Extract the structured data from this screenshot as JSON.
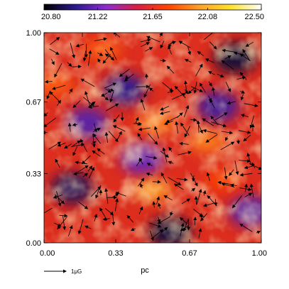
{
  "chart_data": {
    "type": "heatmap",
    "title": "",
    "xlabel": "pc",
    "ylabel": "",
    "xlim": [
      0.0,
      1.0
    ],
    "ylim": [
      0.0,
      1.0
    ],
    "x_ticks": [
      "0.00",
      "0.33",
      "0.67",
      "1.00"
    ],
    "y_ticks": [
      "0.00",
      "0.33",
      "0.67",
      "1.00"
    ],
    "x_tick_values": [
      0.0,
      0.33,
      0.67,
      1.0
    ],
    "y_tick_values": [
      0.0,
      0.33,
      0.67,
      1.0
    ],
    "colorbar": {
      "range": [
        20.8,
        22.5
      ],
      "ticks": [
        "20.80",
        "21.22",
        "21.65",
        "22.08",
        "22.50"
      ],
      "tick_values": [
        20.8,
        21.22,
        21.65,
        22.08,
        22.5
      ],
      "colors": [
        "#000000",
        "#2a1a8c",
        "#8c2ed0",
        "#d81f45",
        "#ff4500",
        "#ffa02a",
        "#ffe22a",
        "#ffffff"
      ]
    },
    "grid": false,
    "legend": "bottom-left",
    "vector_scale_label": "1μG",
    "low_regions": [
      {
        "x": 0.88,
        "y": 0.88,
        "level": 20.9
      },
      {
        "x": 0.13,
        "y": 0.26,
        "level": 20.95
      },
      {
        "x": 0.58,
        "y": 0.05,
        "level": 20.9
      },
      {
        "x": 0.37,
        "y": 0.73,
        "level": 21.05
      },
      {
        "x": 0.8,
        "y": 0.65,
        "level": 21.1
      },
      {
        "x": 0.95,
        "y": 0.15,
        "level": 21.15
      },
      {
        "x": 0.2,
        "y": 0.57,
        "level": 21.15
      },
      {
        "x": 0.45,
        "y": 0.4,
        "level": 21.2
      }
    ],
    "high_regions": [
      {
        "x": 0.5,
        "y": 0.25,
        "level": 22.05
      },
      {
        "x": 0.75,
        "y": 0.48,
        "level": 21.95
      },
      {
        "x": 0.52,
        "y": 0.57,
        "level": 21.95
      },
      {
        "x": 0.05,
        "y": 0.75,
        "level": 21.85
      },
      {
        "x": 0.27,
        "y": 0.92,
        "level": 21.85
      },
      {
        "x": 0.82,
        "y": 0.3,
        "level": 21.75
      }
    ]
  }
}
